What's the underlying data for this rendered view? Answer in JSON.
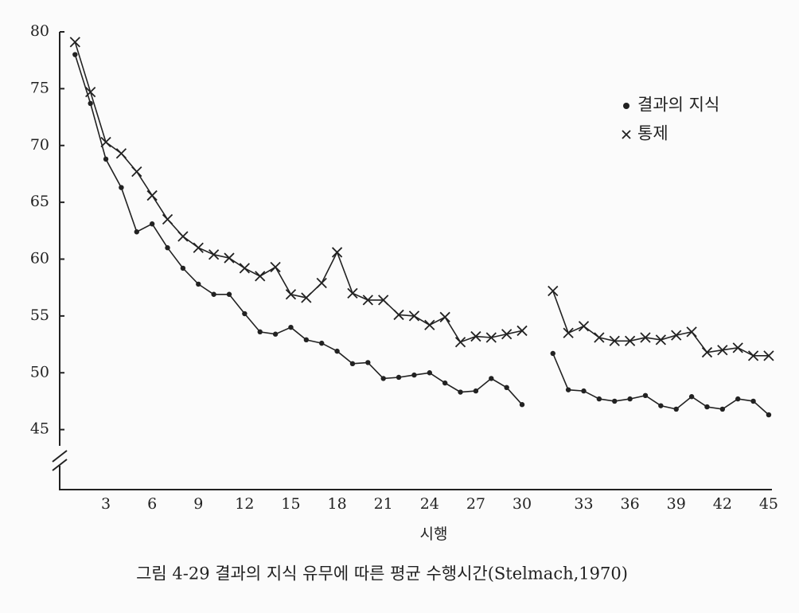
{
  "chart_data": {
    "type": "line",
    "caption": "그림 4-29 결과의 지식 유무에 따른 평균 수행시간(Stelmach,1970)",
    "x_label": "시행",
    "categories": [
      null,
      null,
      "3",
      null,
      null,
      "6",
      null,
      null,
      "9",
      null,
      null,
      "12",
      null,
      null,
      "15",
      null,
      null,
      "18",
      null,
      null,
      "21",
      null,
      null,
      "24",
      null,
      null,
      "27",
      null,
      null,
      "30",
      null,
      null,
      null,
      "33",
      null,
      null,
      "36",
      null,
      null,
      "39",
      null,
      null,
      "42",
      null,
      null,
      "45"
    ],
    "series": [
      {
        "name": "결과의 지식",
        "marker": "dot",
        "color": "#222",
        "values": [
          78.0,
          73.7,
          68.8,
          66.3,
          62.4,
          63.1,
          61.0,
          59.2,
          57.8,
          56.9,
          56.9,
          55.2,
          53.6,
          53.4,
          54.0,
          52.9,
          52.6,
          51.9,
          50.8,
          50.9,
          49.5,
          49.6,
          49.8,
          50.0,
          49.1,
          48.3,
          48.4,
          49.5,
          48.7,
          47.2,
          null,
          51.7,
          48.5,
          48.4,
          47.7,
          47.5,
          47.7,
          48.0,
          47.1,
          46.8,
          47.9,
          47.0,
          46.8,
          47.7,
          47.5,
          46.3
        ]
      },
      {
        "name": "통제",
        "marker": "cross",
        "color": "#222",
        "values": [
          79.1,
          74.7,
          70.3,
          69.3,
          67.7,
          65.6,
          63.5,
          62.0,
          61.0,
          60.4,
          60.1,
          59.2,
          58.5,
          59.3,
          56.9,
          56.6,
          57.9,
          60.6,
          57.0,
          56.4,
          56.4,
          55.1,
          55.0,
          54.2,
          54.9,
          52.7,
          53.2,
          53.1,
          53.4,
          53.7,
          null,
          57.2,
          53.5,
          54.1,
          53.1,
          52.8,
          52.8,
          53.1,
          52.9,
          53.3,
          53.6,
          51.8,
          52.0,
          52.2,
          51.5,
          51.5
        ]
      }
    ],
    "ylim": [
      40,
      80
    ],
    "yticks": [
      45,
      50,
      55,
      60,
      65,
      70,
      75,
      80
    ],
    "legend": "top-right"
  }
}
